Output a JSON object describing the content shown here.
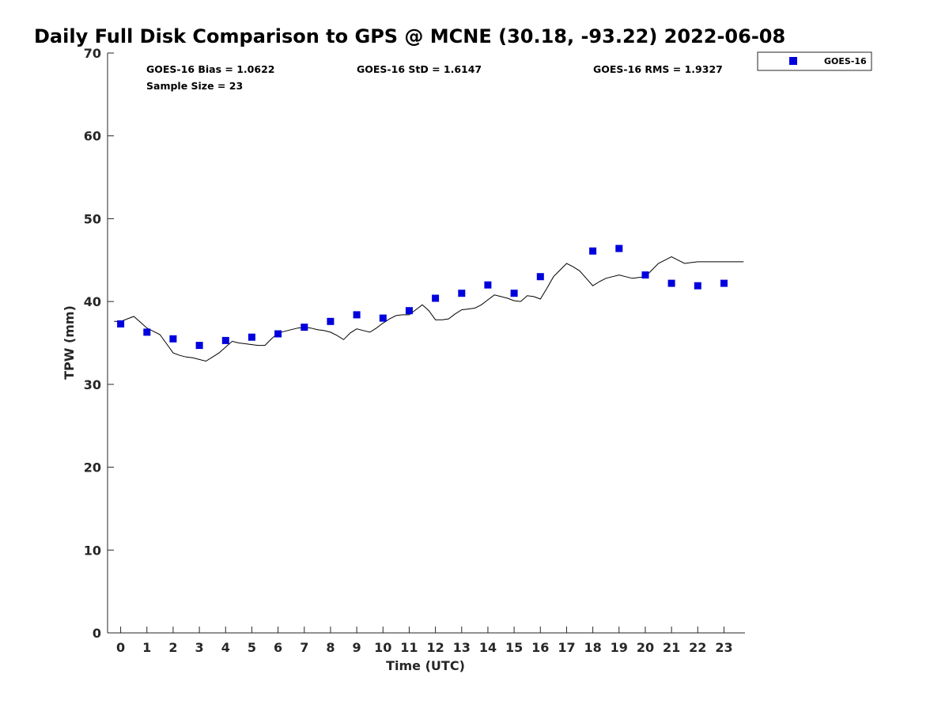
{
  "chart_data": {
    "type": "scatter",
    "title": "Daily Full Disk Comparison to GPS @ MCNE (30.18, -93.22) 2022-06-08",
    "xlabel": "Time (UTC)",
    "ylabel": "TPW (mm)",
    "xlim": [
      -0.5,
      23.8
    ],
    "ylim": [
      0,
      70
    ],
    "x_ticks": [
      0,
      1,
      2,
      3,
      4,
      5,
      6,
      7,
      8,
      9,
      10,
      11,
      12,
      13,
      14,
      15,
      16,
      17,
      18,
      19,
      20,
      21,
      22,
      23
    ],
    "x_tick_labels": [
      "0",
      "1",
      "2",
      "3",
      "4",
      "5",
      "6",
      "7",
      "8",
      "9",
      "10",
      "11",
      "12",
      "13",
      "14",
      "15",
      "16",
      "17",
      "18",
      "19",
      "20",
      "21",
      "22",
      "23"
    ],
    "y_ticks": [
      0,
      10,
      20,
      30,
      40,
      50,
      60,
      70
    ],
    "y_tick_labels": [
      "0",
      "10",
      "20",
      "30",
      "40",
      "50",
      "60",
      "70"
    ],
    "grid": false,
    "legend_position": "outside top-right",
    "stats": {
      "bias": "GOES-16 Bias = 1.0622",
      "std": "GOES-16 StD = 1.6147",
      "rms": "GOES-16 RMS = 1.9327",
      "sample_size": "Sample Size = 23"
    },
    "series": [
      {
        "name": "GOES-16",
        "kind": "scatter",
        "marker": "square",
        "color": "#0000dd",
        "x": [
          0,
          1,
          2,
          3,
          4,
          5,
          6,
          7,
          8,
          9,
          10,
          11,
          12,
          13,
          14,
          15,
          16,
          18,
          19,
          20,
          21,
          22,
          23
        ],
        "y": [
          37.3,
          36.3,
          35.5,
          34.7,
          35.3,
          35.7,
          36.1,
          36.9,
          37.6,
          38.4,
          38.0,
          38.9,
          40.4,
          41.0,
          42.0,
          41.0,
          43.0,
          46.1,
          46.4,
          43.2,
          42.2,
          41.9,
          42.2
        ]
      },
      {
        "kind": "line",
        "color": "#000000",
        "x": [
          -0.25,
          0,
          0.25,
          0.5,
          0.75,
          1,
          1.25,
          1.5,
          1.75,
          2,
          2.25,
          2.5,
          2.75,
          3,
          3.25,
          3.5,
          3.75,
          4,
          4.25,
          4.5,
          4.75,
          5,
          5.25,
          5.5,
          5.75,
          6,
          6.25,
          6.5,
          6.75,
          7,
          7.25,
          7.5,
          7.75,
          8,
          8.25,
          8.5,
          8.75,
          9,
          9.25,
          9.5,
          9.75,
          10,
          10.25,
          10.5,
          10.75,
          11,
          11.25,
          11.5,
          11.75,
          12,
          12.25,
          12.5,
          12.75,
          13,
          13.25,
          13.5,
          13.75,
          14,
          14.25,
          14.5,
          14.75,
          15,
          15.25,
          15.5,
          15.75,
          16,
          16.25,
          16.5,
          16.75,
          17,
          17.25,
          17.5,
          17.75,
          18,
          18.25,
          18.5,
          18.75,
          19,
          19.25,
          19.5,
          19.75,
          20,
          20.25,
          20.5,
          20.75,
          21,
          21.25,
          21.5,
          21.75,
          22,
          22.25,
          22.5,
          22.75,
          23,
          23.25,
          23.5,
          23.75
        ],
        "y": [
          37.6,
          37.6,
          37.9,
          38.2,
          37.5,
          36.8,
          36.4,
          36.0,
          34.9,
          33.8,
          33.5,
          33.3,
          33.2,
          33.0,
          32.8,
          33.3,
          33.8,
          34.5,
          35.2,
          35.0,
          34.9,
          34.8,
          34.7,
          34.7,
          35.5,
          36.2,
          36.4,
          36.6,
          36.8,
          36.9,
          36.8,
          36.6,
          36.5,
          36.3,
          35.9,
          35.4,
          36.2,
          36.7,
          36.5,
          36.3,
          36.8,
          37.4,
          37.9,
          38.3,
          38.4,
          38.4,
          39.0,
          39.6,
          38.9,
          37.8,
          37.8,
          37.9,
          38.5,
          39.0,
          39.1,
          39.2,
          39.6,
          40.2,
          40.8,
          40.6,
          40.4,
          40.1,
          40.0,
          40.7,
          40.6,
          40.3,
          41.6,
          43.0,
          43.8,
          44.6,
          44.2,
          43.7,
          42.8,
          41.9,
          42.4,
          42.8,
          43.0,
          43.2,
          43.0,
          42.8,
          42.9,
          43.0,
          43.8,
          44.6,
          45.0,
          45.4,
          45.0,
          44.6,
          44.7,
          44.8,
          44.8,
          44.8,
          44.8,
          44.8,
          44.8,
          44.8,
          44.8
        ]
      }
    ]
  },
  "legend": {
    "marker_color": "#0000dd"
  }
}
